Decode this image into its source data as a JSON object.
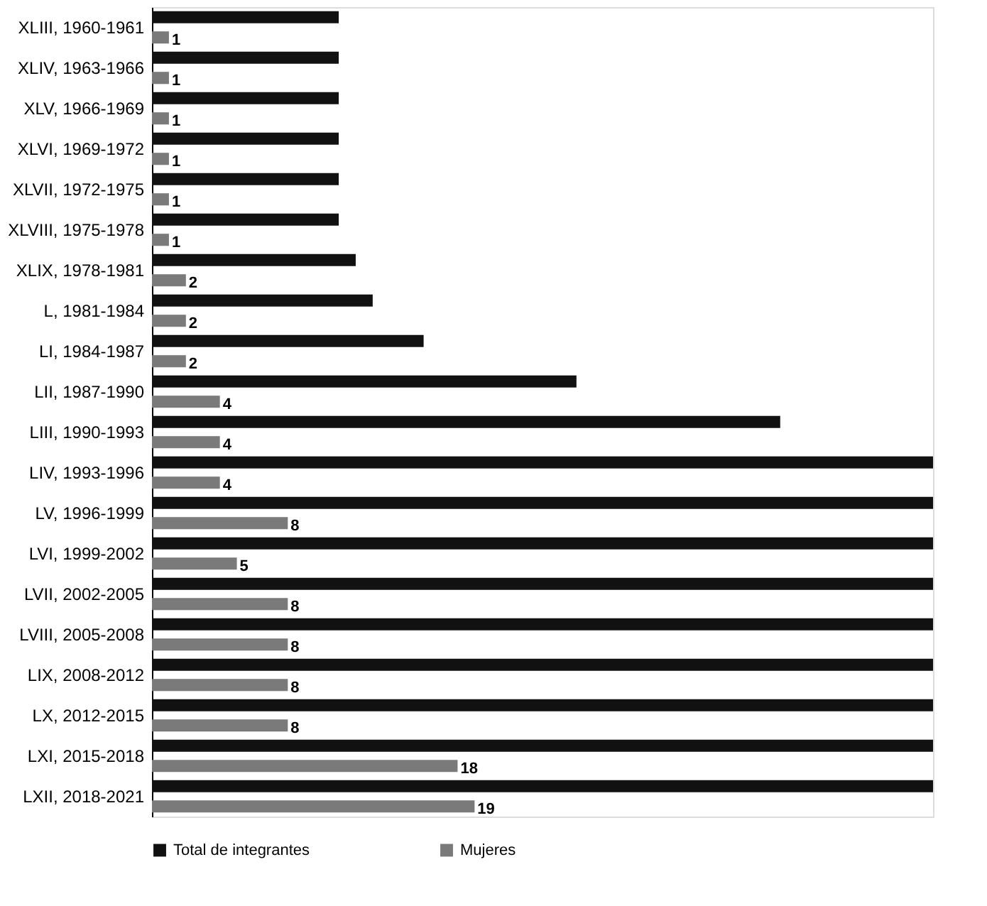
{
  "chart_data": {
    "type": "bar",
    "orientation": "horizontal",
    "legend": "bottom",
    "grid": false,
    "categories": [
      "XLIII, 1960-1961",
      "XLIV, 1963-1966",
      "XLV, 1966-1969",
      "XLVI, 1969-1972",
      "XLVII, 1972-1975",
      "XLVIII, 1975-1978",
      "XLIX, 1978-1981",
      "L, 1981-1984",
      "LI, 1984-1987",
      "LII, 1987-1990",
      "LIII, 1990-1993",
      "LIV, 1993-1996",
      "LV, 1996-1999",
      "LVI, 1999-2002",
      "LVII, 2002-2005",
      "LVIII, 2005-2008",
      "LIX, 2008-2012",
      "LX, 2012-2015",
      "LXI, 2015-2018",
      "LXII, 2018-2021"
    ],
    "series": [
      {
        "name": "Total de integrantes",
        "color": "#111111",
        "values": [
          11,
          11,
          11,
          11,
          11,
          11,
          12,
          13,
          16,
          25,
          37,
          46,
          46,
          46,
          46,
          46,
          46,
          46,
          46,
          46
        ]
      },
      {
        "name": "Mujeres",
        "color": "#7a7a7a",
        "values": [
          1,
          1,
          1,
          1,
          1,
          1,
          2,
          2,
          2,
          4,
          4,
          4,
          8,
          5,
          8,
          8,
          8,
          8,
          18,
          19
        ],
        "value_labels": [
          "1",
          "1",
          "1",
          "1",
          "1",
          "1",
          "2",
          "2",
          "2",
          "4",
          "4",
          "4",
          "8",
          "5",
          "8",
          "8",
          "8",
          "8",
          "18",
          "19"
        ]
      }
    ]
  }
}
